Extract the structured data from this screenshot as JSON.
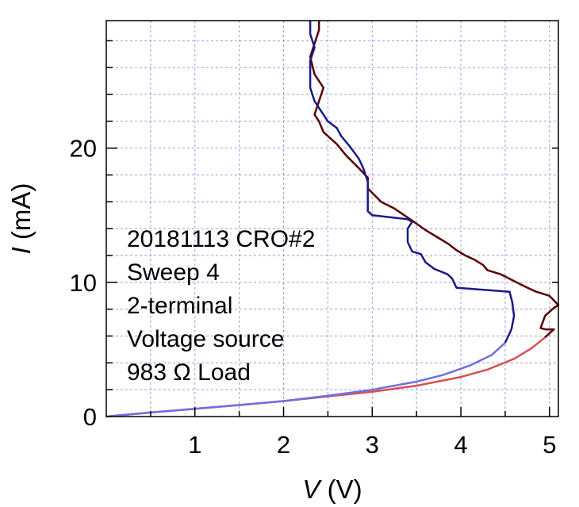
{
  "chart_data": {
    "type": "line",
    "title": "",
    "xlabel": {
      "var": "V",
      "unit": "(V)"
    },
    "ylabel": {
      "var": "I",
      "unit": "(mA)"
    },
    "xlim": [
      0,
      5.1
    ],
    "ylim": [
      0,
      29.5
    ],
    "x_ticks": [
      1,
      2,
      3,
      4,
      5
    ],
    "y_ticks": [
      0,
      10,
      20
    ],
    "y_minor_step": 2,
    "x_minor_step": 0.5,
    "grid": true,
    "annotation": [
      "20181113 CRO#2",
      "Sweep 4",
      "2-terminal",
      "Voltage source",
      "983 Ω Load"
    ],
    "series": [
      {
        "color_low": "#d85050",
        "color_high": "#5a0000",
        "color_split_y": 6.5,
        "points": [
          [
            0,
            0
          ],
          [
            0.5,
            0.3
          ],
          [
            1,
            0.58
          ],
          [
            1.5,
            0.86
          ],
          [
            2,
            1.15
          ],
          [
            2.5,
            1.5
          ],
          [
            3,
            1.85
          ],
          [
            3.5,
            2.3
          ],
          [
            4,
            2.95
          ],
          [
            4.3,
            3.5
          ],
          [
            4.6,
            4.3
          ],
          [
            4.8,
            5.1
          ],
          [
            4.95,
            5.9
          ],
          [
            5.05,
            6.5
          ],
          [
            4.95,
            6.5
          ],
          [
            4.9,
            6.6
          ],
          [
            4.95,
            7.5
          ],
          [
            5.05,
            8.1
          ],
          [
            5.1,
            8.3
          ],
          [
            5.0,
            9.0
          ],
          [
            4.85,
            9.3
          ],
          [
            4.75,
            9.6
          ],
          [
            4.6,
            10.1
          ],
          [
            4.45,
            10.6
          ],
          [
            4.3,
            10.9
          ],
          [
            4.25,
            11.3
          ],
          [
            4.15,
            11.7
          ],
          [
            4.05,
            12.0
          ],
          [
            3.95,
            12.4
          ],
          [
            3.85,
            12.9
          ],
          [
            3.75,
            13.3
          ],
          [
            3.6,
            13.9
          ],
          [
            3.45,
            14.6
          ],
          [
            3.25,
            15.5
          ],
          [
            3.1,
            16.0
          ],
          [
            2.95,
            17.0
          ],
          [
            2.95,
            17.8
          ],
          [
            2.85,
            18.5
          ],
          [
            2.7,
            19.5
          ],
          [
            2.6,
            20.3
          ],
          [
            2.45,
            21.2
          ],
          [
            2.4,
            22.0
          ],
          [
            2.35,
            22.5
          ],
          [
            2.4,
            23.5
          ],
          [
            2.45,
            24.5
          ],
          [
            2.35,
            25.5
          ],
          [
            2.3,
            26.8
          ],
          [
            2.35,
            27.8
          ],
          [
            2.4,
            28.8
          ],
          [
            2.4,
            29.5
          ]
        ]
      },
      {
        "color_low": "#6f6fe0",
        "color_high": "#1a1a88",
        "color_split_y": 6.5,
        "points": [
          [
            0,
            0
          ],
          [
            0.5,
            0.3
          ],
          [
            1,
            0.58
          ],
          [
            1.5,
            0.86
          ],
          [
            2,
            1.15
          ],
          [
            2.5,
            1.55
          ],
          [
            3,
            2.0
          ],
          [
            3.5,
            2.6
          ],
          [
            3.8,
            3.1
          ],
          [
            4.1,
            3.8
          ],
          [
            4.35,
            4.6
          ],
          [
            4.5,
            5.5
          ],
          [
            4.57,
            6.5
          ],
          [
            4.6,
            7.5
          ],
          [
            4.58,
            8.5
          ],
          [
            4.55,
            9.3
          ],
          [
            3.95,
            9.6
          ],
          [
            3.9,
            10.3
          ],
          [
            3.85,
            10.6
          ],
          [
            3.7,
            11.0
          ],
          [
            3.6,
            11.5
          ],
          [
            3.55,
            12.1
          ],
          [
            3.45,
            12.3
          ],
          [
            3.4,
            13.0
          ],
          [
            3.4,
            14.0
          ],
          [
            3.45,
            14.5
          ],
          [
            3.4,
            14.7
          ],
          [
            3.0,
            15.0
          ],
          [
            2.95,
            15.3
          ],
          [
            2.95,
            16.2
          ],
          [
            2.95,
            17.5
          ],
          [
            2.9,
            18.5
          ],
          [
            2.85,
            19.2
          ],
          [
            2.75,
            20.1
          ],
          [
            2.65,
            20.9
          ],
          [
            2.6,
            21.5
          ],
          [
            2.5,
            22.0
          ],
          [
            2.45,
            22.5
          ],
          [
            2.35,
            23.5
          ],
          [
            2.3,
            24.5
          ],
          [
            2.3,
            25.5
          ],
          [
            2.3,
            26.5
          ],
          [
            2.35,
            27.5
          ],
          [
            2.3,
            28.5
          ],
          [
            2.3,
            29.5
          ]
        ]
      }
    ]
  }
}
